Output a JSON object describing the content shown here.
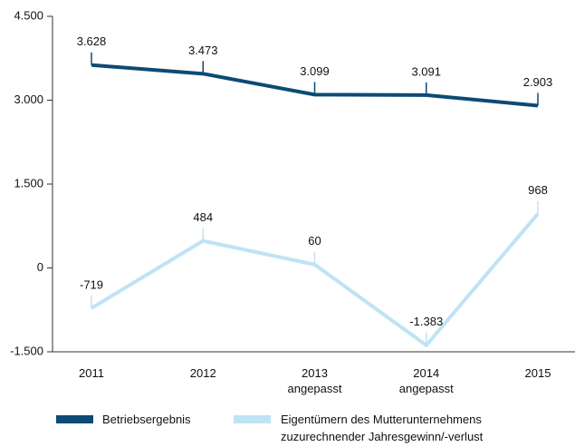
{
  "chart_data": {
    "type": "line",
    "categories": [
      "2011",
      "2012",
      "2013 angepasst",
      "2014 angepasst",
      "2015"
    ],
    "series": [
      {
        "name": "Betriebsergebnis",
        "color": "#0d4a75",
        "values": [
          3628,
          3473,
          3099,
          3091,
          2903
        ],
        "value_labels": [
          "3.628",
          "3.473",
          "3.099",
          "3.091",
          "2.903"
        ]
      },
      {
        "name": "Eigentümern des Mutterunternehmens zuzurechnender Jahresgewinn/-verlust",
        "color": "#bfe3f5",
        "values": [
          -719,
          484,
          60,
          -1383,
          968
        ],
        "value_labels": [
          "-719",
          "484",
          "60",
          "-1.383",
          "968"
        ]
      }
    ],
    "ylim": [
      -1500,
      4500
    ],
    "yticks": [
      {
        "value": -1500,
        "label": "-1.500"
      },
      0,
      {
        "value": 1500,
        "label": "1.500"
      },
      {
        "value": 3000,
        "label": "3.000"
      },
      {
        "value": 4500,
        "label": "4.500"
      }
    ],
    "legend": "bottom"
  }
}
